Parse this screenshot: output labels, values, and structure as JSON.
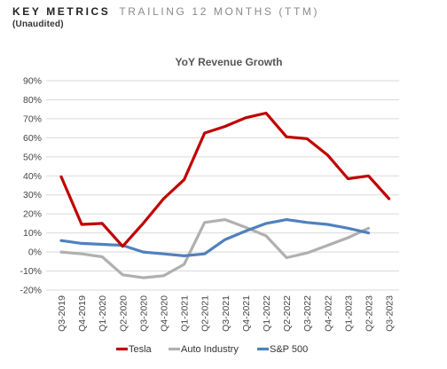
{
  "header": {
    "title": "KEY METRICS",
    "subtitle": "TRAILING 12 MONTHS (TTM)",
    "note": "(Unaudited)"
  },
  "chart_data": {
    "type": "line",
    "title": "YoY Revenue Growth",
    "xlabel": "",
    "ylabel": "",
    "ylim": [
      -20,
      90
    ],
    "y_ticks": [
      -20,
      -10,
      0,
      10,
      20,
      30,
      40,
      50,
      60,
      70,
      80,
      90
    ],
    "y_tick_labels": [
      "-20%",
      "-10%",
      "0%",
      "10%",
      "20%",
      "30%",
      "40%",
      "50%",
      "60%",
      "70%",
      "80%",
      "90%"
    ],
    "grid": true,
    "legend_position": "bottom",
    "categories": [
      "Q3-2019",
      "Q4-2019",
      "Q1-2020",
      "Q2-2020",
      "Q3-2020",
      "Q4-2020",
      "Q1-2021",
      "Q2-2021",
      "Q3-2021",
      "Q4-2021",
      "Q1-2022",
      "Q2-2022",
      "Q3-2022",
      "Q4-2022",
      "Q1-2023",
      "Q2-2023",
      "Q3-2023"
    ],
    "series": [
      {
        "name": "Tesla",
        "color": "#c00000",
        "values": [
          39.5,
          14.5,
          15,
          3,
          15,
          28,
          38,
          62.5,
          66,
          70.5,
          73,
          60.5,
          59.5,
          51,
          38.5,
          40,
          28
        ]
      },
      {
        "name": "Auto Industry",
        "color": "#b0b0b0",
        "values": [
          0,
          -1,
          -2.5,
          -12,
          -13.5,
          -12.5,
          -6.5,
          15.5,
          17,
          13,
          8.5,
          -3,
          -0.5,
          3.5,
          7.5,
          12.5,
          null
        ]
      },
      {
        "name": "S&P 500",
        "color": "#4f81bd",
        "values": [
          6,
          4.5,
          4,
          3.5,
          0,
          -1,
          -2,
          -1,
          6.5,
          11,
          15,
          17,
          15.5,
          14.5,
          12.5,
          10,
          null
        ]
      }
    ]
  }
}
